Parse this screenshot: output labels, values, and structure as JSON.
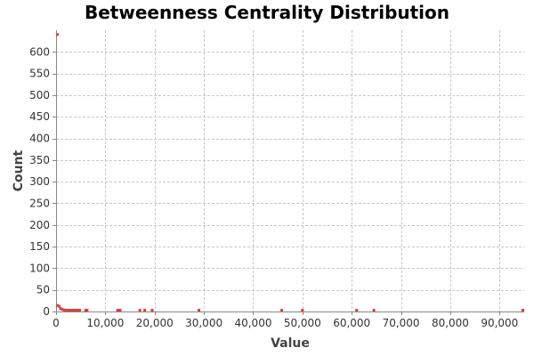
{
  "chart_data": {
    "type": "scatter",
    "title": "Betweenness Centrality Distribution",
    "xlabel": "Value",
    "ylabel": "Count",
    "xlim": [
      0,
      95000
    ],
    "ylim": [
      0,
      650
    ],
    "x_ticks": [
      0,
      10000,
      20000,
      30000,
      40000,
      50000,
      60000,
      70000,
      80000,
      90000
    ],
    "x_tick_labels": [
      "0",
      "10,000",
      "20,000",
      "30,000",
      "40,000",
      "50,000",
      "60,000",
      "70,000",
      "80,000",
      "90,000"
    ],
    "y_ticks": [
      0,
      50,
      100,
      150,
      200,
      250,
      300,
      350,
      400,
      450,
      500,
      550,
      600
    ],
    "y_tick_labels": [
      "0",
      "50",
      "100",
      "150",
      "200",
      "250",
      "300",
      "350",
      "400",
      "450",
      "500",
      "550",
      "600"
    ],
    "grid": true,
    "legend": "none",
    "color": "#e03c3c",
    "series": [
      {
        "x": [
          0,
          300,
          600,
          900,
          1200,
          1500,
          1800,
          2100,
          2400,
          2700,
          3000,
          3300,
          3600,
          3900,
          4200,
          4500,
          4800,
          6000,
          6300,
          12500,
          13000,
          17000,
          18000,
          19500,
          29000,
          45800,
          50000,
          61000,
          64500,
          95000
        ],
        "y": [
          640,
          14,
          12,
          7,
          5,
          4,
          3,
          3,
          2,
          2,
          2,
          2,
          1,
          1,
          1,
          1,
          1,
          1,
          1,
          1,
          1,
          1,
          1,
          1,
          1,
          1,
          1,
          1,
          1,
          1
        ]
      }
    ]
  }
}
